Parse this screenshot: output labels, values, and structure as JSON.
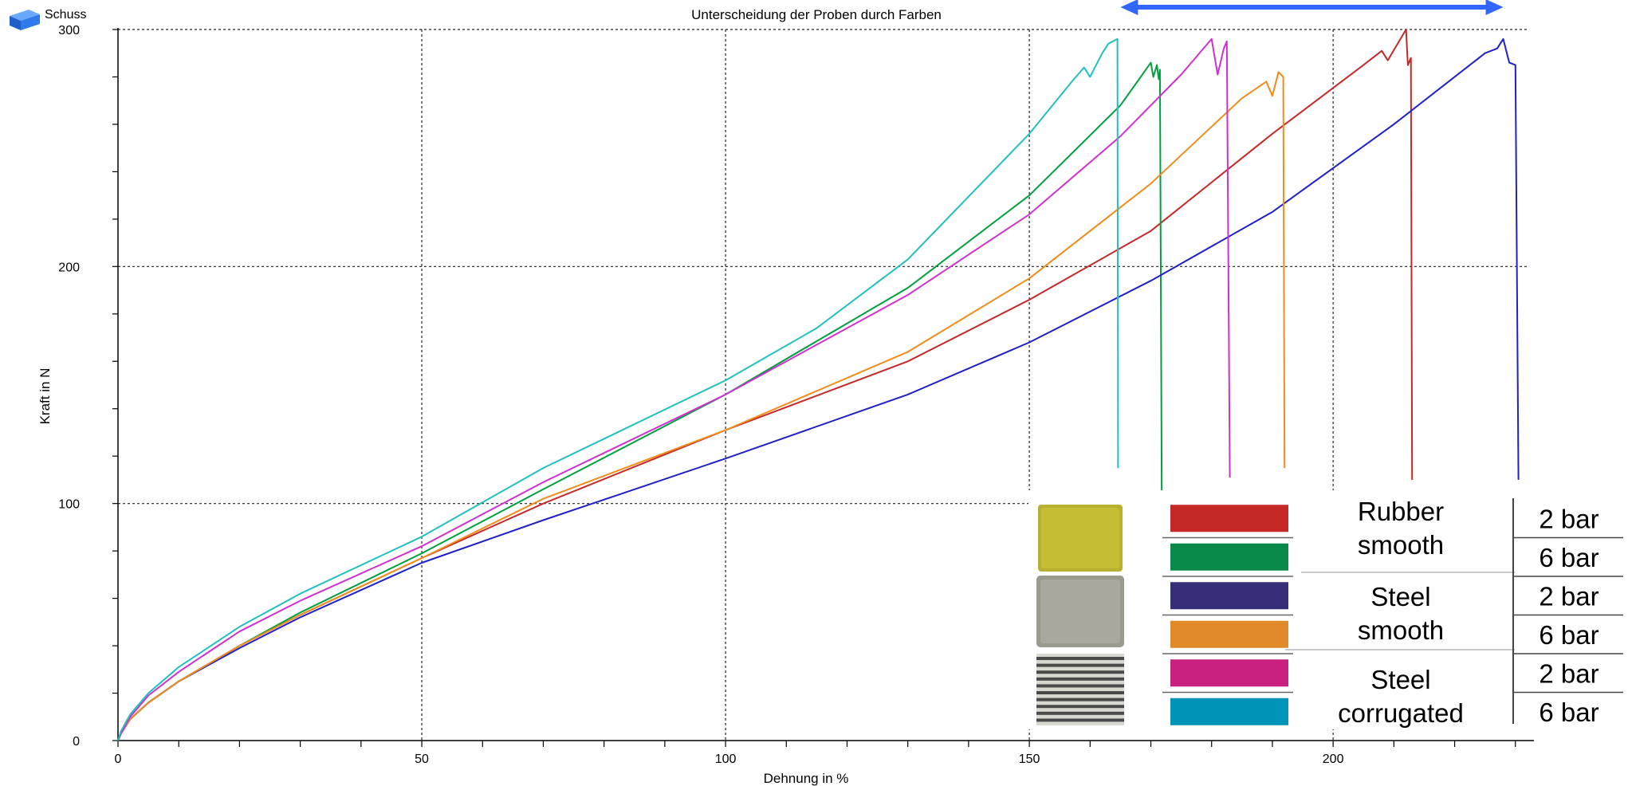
{
  "window": {
    "icon": "blue-cube-icon",
    "label": "Schuss"
  },
  "chart_data": {
    "type": "line",
    "title": "Unterscheidung der Proben durch Farben",
    "xlabel": "Dehnung in %",
    "ylabel": "Kraft in N",
    "xlim": [
      0,
      232
    ],
    "ylim": [
      0,
      300
    ],
    "xticks": [
      0,
      50,
      100,
      150,
      200
    ],
    "xtick_labels": [
      "0",
      "50",
      "100",
      "150",
      "200"
    ],
    "yticks": [
      0,
      100,
      200,
      300
    ],
    "ytick_labels": [
      "0",
      "100",
      "200",
      "300"
    ],
    "grid": true,
    "arrow": {
      "x_start": 165,
      "x_end": 228,
      "color": "#3366ff"
    },
    "series": [
      {
        "color": "#c62828",
        "points": [
          [
            0,
            0
          ],
          [
            0.5,
            3
          ],
          [
            2,
            9
          ],
          [
            5,
            16
          ],
          [
            10,
            25
          ],
          [
            20,
            40
          ],
          [
            30,
            53
          ],
          [
            50,
            77
          ],
          [
            70,
            100
          ],
          [
            100,
            131
          ],
          [
            130,
            160
          ],
          [
            150,
            186
          ],
          [
            170,
            215
          ],
          [
            190,
            256
          ],
          [
            205,
            285
          ],
          [
            208,
            291
          ],
          [
            209,
            287
          ],
          [
            212,
            300
          ],
          [
            212.3,
            285
          ],
          [
            212.8,
            288
          ],
          [
            213,
            110
          ]
        ]
      },
      {
        "color": "#00a040",
        "points": [
          [
            0,
            0
          ],
          [
            0.5,
            3
          ],
          [
            2,
            9
          ],
          [
            5,
            16
          ],
          [
            10,
            25
          ],
          [
            20,
            40
          ],
          [
            30,
            54
          ],
          [
            50,
            79
          ],
          [
            70,
            106
          ],
          [
            100,
            146
          ],
          [
            130,
            191
          ],
          [
            150,
            230
          ],
          [
            165,
            268
          ],
          [
            170,
            286
          ],
          [
            170.4,
            280
          ],
          [
            171,
            285
          ],
          [
            171.3,
            279
          ],
          [
            171.5,
            283
          ],
          [
            171.8,
            103
          ]
        ]
      },
      {
        "color": "#2020c8",
        "points": [
          [
            0,
            0
          ],
          [
            0.5,
            3
          ],
          [
            2,
            9
          ],
          [
            5,
            16
          ],
          [
            10,
            25
          ],
          [
            20,
            39
          ],
          [
            30,
            52
          ],
          [
            50,
            75
          ],
          [
            70,
            93
          ],
          [
            100,
            119
          ],
          [
            130,
            146
          ],
          [
            150,
            168
          ],
          [
            170,
            194
          ],
          [
            190,
            223
          ],
          [
            210,
            260
          ],
          [
            225,
            290
          ],
          [
            227,
            292
          ],
          [
            228,
            296
          ],
          [
            229,
            286
          ],
          [
            230,
            285
          ],
          [
            230.5,
            110
          ]
        ]
      },
      {
        "color": "#f08c1a",
        "points": [
          [
            0,
            0
          ],
          [
            0.5,
            3
          ],
          [
            2,
            9
          ],
          [
            5,
            16
          ],
          [
            10,
            25
          ],
          [
            20,
            40
          ],
          [
            30,
            53
          ],
          [
            50,
            77
          ],
          [
            70,
            102
          ],
          [
            100,
            131
          ],
          [
            130,
            164
          ],
          [
            150,
            195
          ],
          [
            170,
            235
          ],
          [
            185,
            271
          ],
          [
            189,
            278
          ],
          [
            190,
            272
          ],
          [
            191,
            282
          ],
          [
            191.8,
            280
          ],
          [
            192,
            115
          ]
        ]
      },
      {
        "color": "#d030d0",
        "points": [
          [
            0,
            0
          ],
          [
            0.5,
            3
          ],
          [
            2,
            10
          ],
          [
            5,
            19
          ],
          [
            10,
            29
          ],
          [
            20,
            46
          ],
          [
            30,
            59
          ],
          [
            50,
            82
          ],
          [
            70,
            109
          ],
          [
            100,
            146
          ],
          [
            130,
            188
          ],
          [
            150,
            222
          ],
          [
            165,
            255
          ],
          [
            175,
            281
          ],
          [
            180,
            296
          ],
          [
            181,
            281
          ],
          [
            182,
            292
          ],
          [
            182.5,
            295
          ],
          [
            183,
            111
          ]
        ]
      },
      {
        "color": "#20c0c0",
        "points": [
          [
            0,
            0
          ],
          [
            0.5,
            4
          ],
          [
            2,
            11
          ],
          [
            5,
            20
          ],
          [
            10,
            31
          ],
          [
            20,
            48
          ],
          [
            30,
            62
          ],
          [
            50,
            86
          ],
          [
            70,
            115
          ],
          [
            100,
            152
          ],
          [
            115,
            174
          ],
          [
            130,
            203
          ],
          [
            150,
            256
          ],
          [
            157,
            278
          ],
          [
            159,
            284
          ],
          [
            160,
            280
          ],
          [
            161,
            285
          ],
          [
            162,
            290
          ],
          [
            163,
            294
          ],
          [
            164.5,
            296
          ],
          [
            164.6,
            115
          ]
        ]
      }
    ]
  },
  "legend": {
    "rows": [
      {
        "color": "#c62828",
        "pressure": "2 bar"
      },
      {
        "color": "#0a8a4a",
        "pressure": "6 bar"
      },
      {
        "color": "#352f7a",
        "pressure": "2 bar"
      },
      {
        "color": "#e08a2a",
        "pressure": "6 bar"
      },
      {
        "color": "#c8207e",
        "pressure": "2 bar"
      },
      {
        "color": "#0094b8",
        "pressure": "6 bar"
      }
    ],
    "groups": [
      {
        "line1": "Rubber",
        "line2": "smooth",
        "swatch": "yellow-rubber-sample"
      },
      {
        "line1": "Steel",
        "line2": "smooth",
        "swatch": "grey-steel-sample"
      },
      {
        "line1": "Steel",
        "line2": "corrugated",
        "swatch": "striped-steel-sample"
      }
    ]
  }
}
